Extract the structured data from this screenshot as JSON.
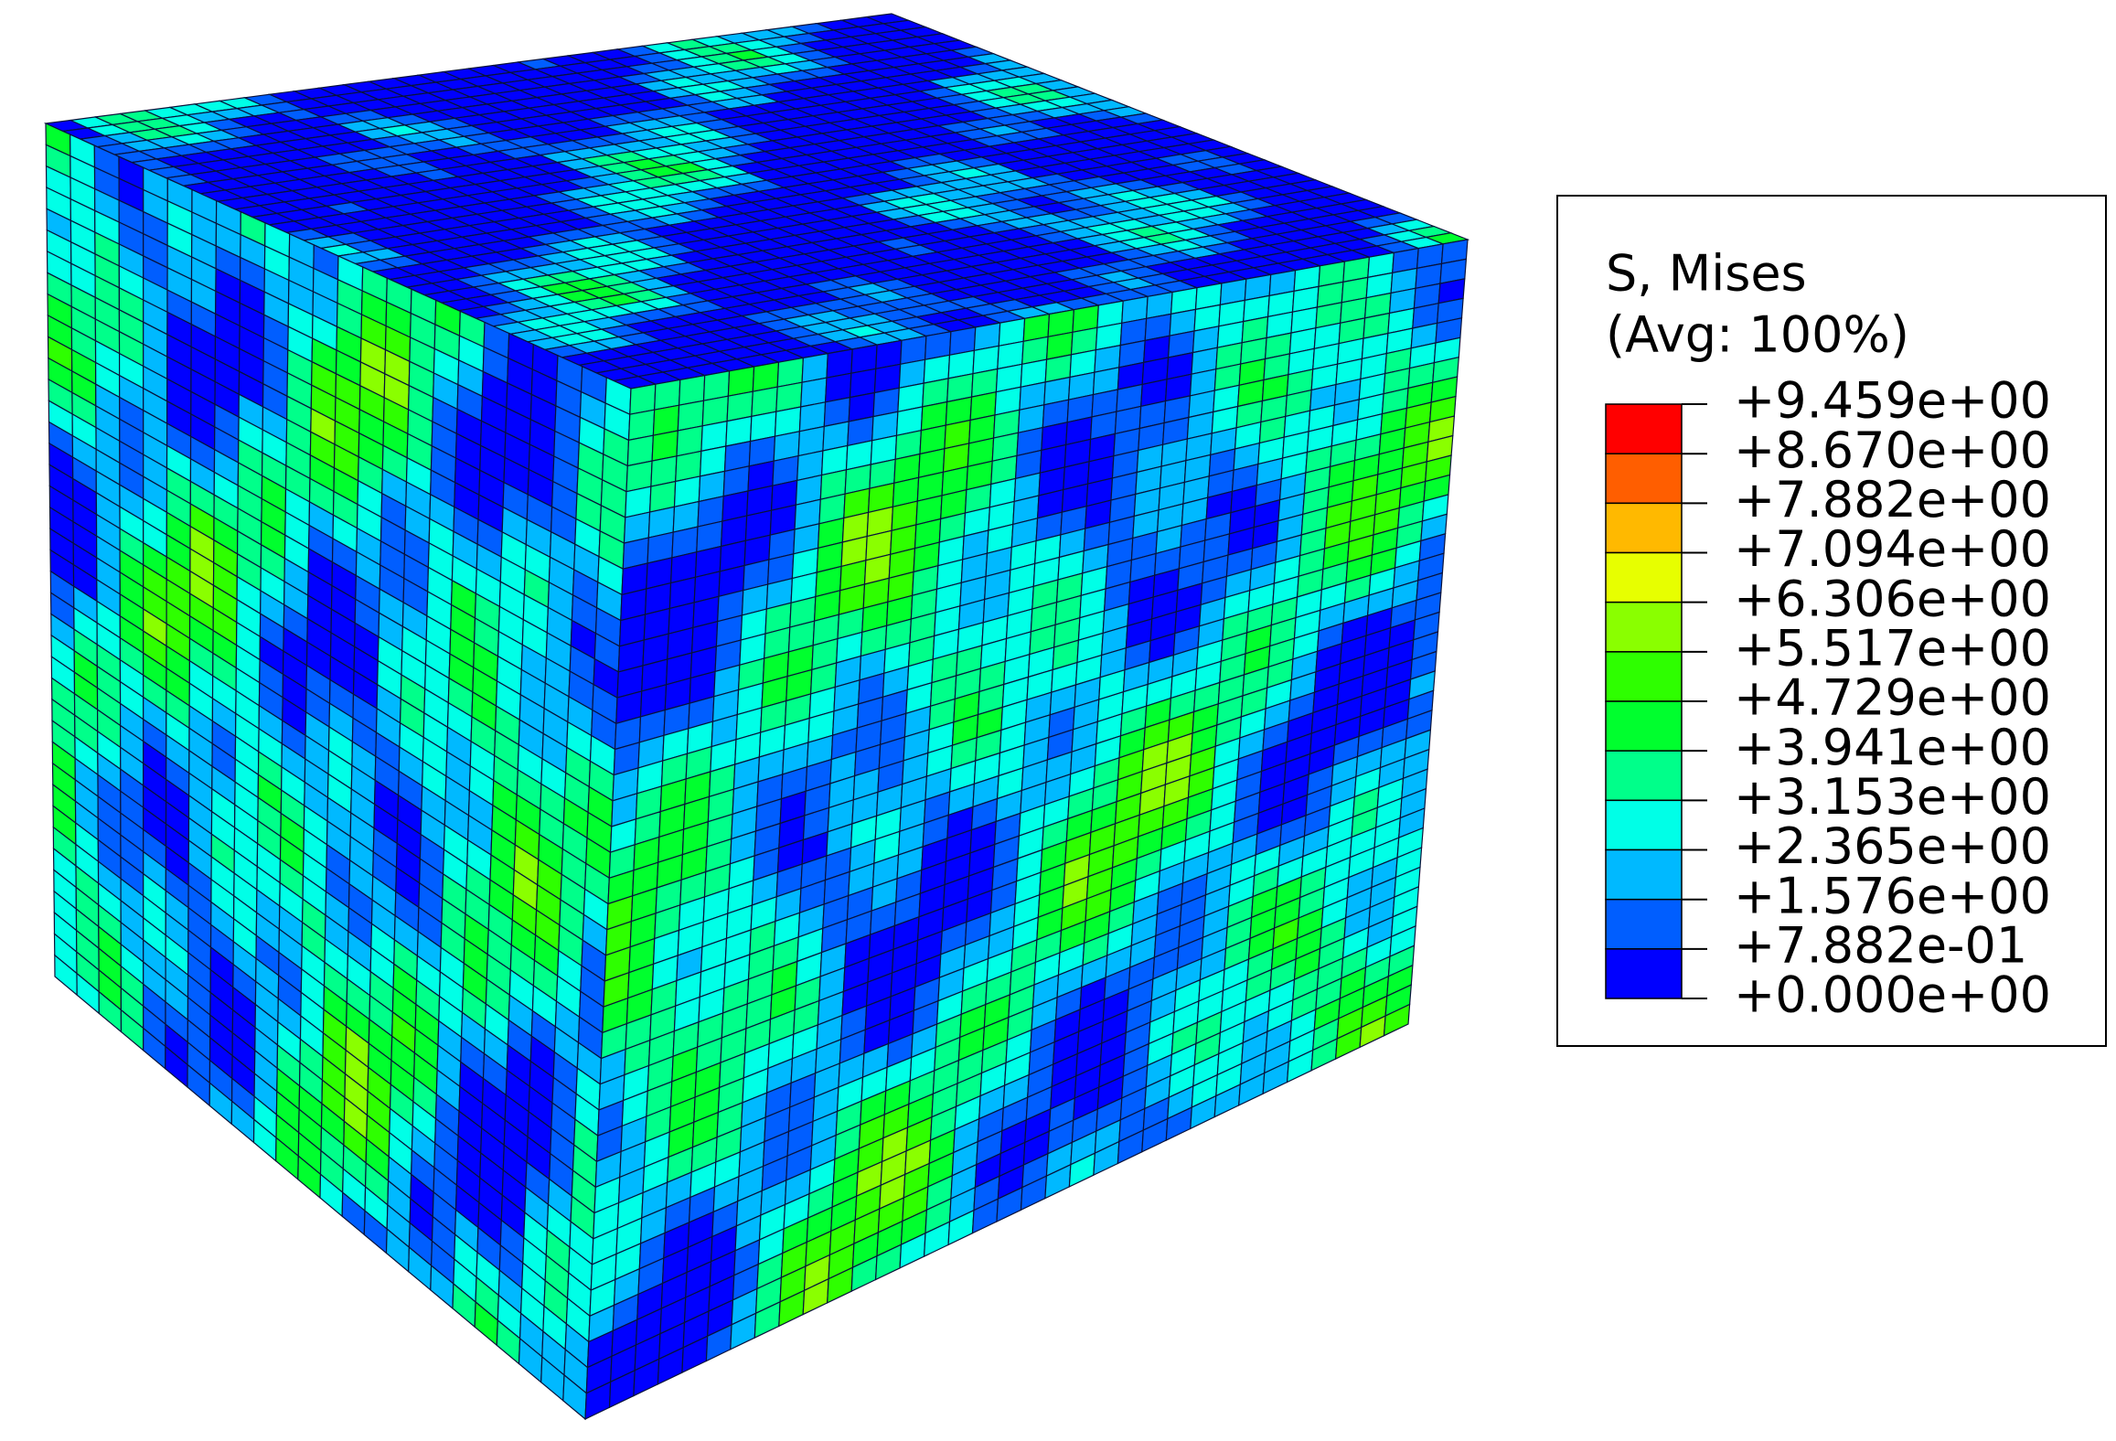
{
  "legend": {
    "title": "S, Mises",
    "subtitle": "(Avg: 100%)",
    "ticks": [
      {
        "value": 9.459,
        "label": "+9.459e+00"
      },
      {
        "value": 8.67,
        "label": "+8.670e+00"
      },
      {
        "value": 7.882,
        "label": "+7.882e+00"
      },
      {
        "value": 7.094,
        "label": "+7.094e+00"
      },
      {
        "value": 6.306,
        "label": "+6.306e+00"
      },
      {
        "value": 5.517,
        "label": "+5.517e+00"
      },
      {
        "value": 4.729,
        "label": "+4.729e+00"
      },
      {
        "value": 3.941,
        "label": "+3.941e+00"
      },
      {
        "value": 3.153,
        "label": "+3.153e+00"
      },
      {
        "value": 2.365,
        "label": "+2.365e+00"
      },
      {
        "value": 1.576,
        "label": "+1.576e+00"
      },
      {
        "value": 0.7882,
        "label": "+7.882e-01"
      },
      {
        "value": 0,
        "label": "+0.000e+00"
      }
    ],
    "colors": [
      "#ff0000",
      "#ff5e00",
      "#ffb900",
      "#e7ff00",
      "#8aff00",
      "#2eff00",
      "#00ff2e",
      "#00ff8a",
      "#00ffe7",
      "#00b9ff",
      "#005eff",
      "#0000ff"
    ]
  }
}
